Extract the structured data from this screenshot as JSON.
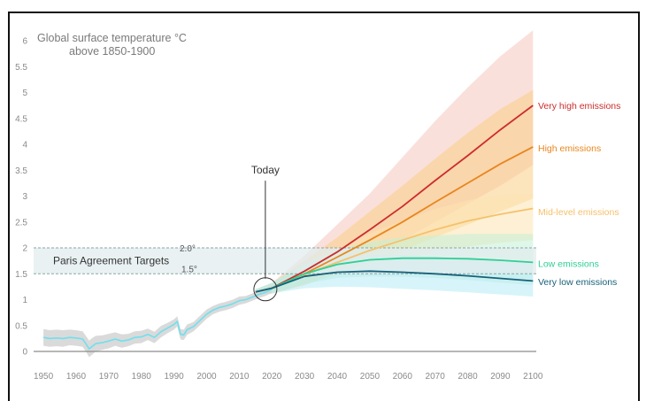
{
  "chart_data": {
    "type": "line",
    "title_line1": "Global surface temperature °C",
    "title_line2": "above 1850-1900",
    "xlim": [
      1947,
      2101
    ],
    "ylim": [
      0,
      6
    ],
    "x_ticks": [
      1950,
      1960,
      1970,
      1980,
      1990,
      2000,
      2010,
      2020,
      2030,
      2040,
      2050,
      2060,
      2070,
      2080,
      2090,
      2100
    ],
    "y_ticks": [
      {
        "value": 0,
        "label": "0"
      },
      {
        "value": 0.5,
        "label": "0.5"
      },
      {
        "value": 1,
        "label": "1"
      },
      {
        "value": 1.5,
        "label": "1.5"
      },
      {
        "value": 2,
        "label": "2"
      },
      {
        "value": 2.5,
        "label": "2.5"
      },
      {
        "value": 3,
        "label": "3"
      },
      {
        "value": 3.5,
        "label": "3.5"
      },
      {
        "value": 4,
        "label": "4"
      },
      {
        "value": 4.5,
        "label": "4.5"
      },
      {
        "value": 5,
        "label": "5"
      },
      {
        "value": 5.5,
        "label": "5.5"
      },
      {
        "value": 6,
        "label": "6"
      }
    ],
    "historical": {
      "color": "#6fe0ee",
      "band_color": "#d3d3d3",
      "x": [
        1950,
        1952,
        1954,
        1956,
        1958,
        1960,
        1962,
        1963,
        1964,
        1965,
        1966,
        1968,
        1970,
        1972,
        1974,
        1976,
        1978,
        1980,
        1982,
        1984,
        1986,
        1988,
        1990,
        1991,
        1992,
        1993,
        1994,
        1996,
        1998,
        2000,
        2002,
        2004,
        2006,
        2008,
        2010,
        2012,
        2014,
        2016,
        2018,
        2020
      ],
      "y": [
        0.27,
        0.25,
        0.26,
        0.25,
        0.27,
        0.26,
        0.24,
        0.15,
        0.05,
        0.1,
        0.15,
        0.17,
        0.2,
        0.24,
        0.2,
        0.22,
        0.27,
        0.28,
        0.33,
        0.27,
        0.38,
        0.45,
        0.52,
        0.58,
        0.33,
        0.32,
        0.42,
        0.48,
        0.6,
        0.72,
        0.8,
        0.85,
        0.88,
        0.92,
        0.98,
        1.0,
        1.05,
        1.1,
        1.14,
        1.2
      ],
      "band": [
        0.16,
        0.16,
        0.16,
        0.16,
        0.15,
        0.15,
        0.15,
        0.15,
        0.16,
        0.16,
        0.15,
        0.14,
        0.14,
        0.13,
        0.13,
        0.12,
        0.12,
        0.12,
        0.11,
        0.11,
        0.11,
        0.1,
        0.1,
        0.1,
        0.1,
        0.1,
        0.1,
        0.09,
        0.09,
        0.09,
        0.08,
        0.08,
        0.08,
        0.08,
        0.08,
        0.07,
        0.07,
        0.07,
        0.07,
        0.07
      ]
    },
    "series": [
      {
        "name": "Very high emissions",
        "color": "#cc2d2d",
        "x": [
          2015,
          2020,
          2030,
          2040,
          2050,
          2060,
          2070,
          2080,
          2090,
          2100
        ],
        "y": [
          1.15,
          1.22,
          1.55,
          1.92,
          2.35,
          2.8,
          3.3,
          3.78,
          4.28,
          4.75
        ],
        "band_low": [
          1.1,
          1.12,
          1.3,
          1.55,
          1.85,
          2.15,
          2.5,
          2.85,
          3.2,
          3.6
        ],
        "band_high": [
          1.2,
          1.32,
          1.85,
          2.45,
          3.05,
          3.75,
          4.45,
          5.1,
          5.7,
          6.2
        ],
        "band_color": "#f6c6be"
      },
      {
        "name": "High emissions",
        "color": "#e8861d",
        "x": [
          2015,
          2020,
          2030,
          2040,
          2050,
          2060,
          2070,
          2080,
          2090,
          2100
        ],
        "y": [
          1.15,
          1.22,
          1.5,
          1.82,
          2.15,
          2.5,
          2.88,
          3.25,
          3.62,
          3.95
        ],
        "band_low": [
          1.1,
          1.12,
          1.28,
          1.5,
          1.72,
          1.95,
          2.2,
          2.45,
          2.7,
          2.95
        ],
        "band_high": [
          1.2,
          1.32,
          1.75,
          2.2,
          2.7,
          3.2,
          3.72,
          4.22,
          4.68,
          5.05
        ],
        "band_color": "#f9cd86"
      },
      {
        "name": "Mid-level emissions",
        "color": "#f5c16c",
        "x": [
          2015,
          2020,
          2030,
          2040,
          2050,
          2060,
          2070,
          2080,
          2090,
          2100
        ],
        "y": [
          1.15,
          1.22,
          1.48,
          1.72,
          1.95,
          2.15,
          2.35,
          2.52,
          2.65,
          2.76
        ],
        "band_low": [
          1.1,
          1.12,
          1.3,
          1.48,
          1.65,
          1.8,
          1.92,
          2.02,
          2.1,
          2.15
        ],
        "band_high": [
          1.2,
          1.32,
          1.68,
          1.98,
          2.28,
          2.52,
          2.75,
          2.92,
          3.02,
          3.05
        ],
        "band_color": "#fbe3b0"
      },
      {
        "name": "Low emissions",
        "color": "#2fcf95",
        "x": [
          2015,
          2020,
          2030,
          2040,
          2050,
          2060,
          2070,
          2080,
          2090,
          2100
        ],
        "y": [
          1.15,
          1.22,
          1.5,
          1.68,
          1.77,
          1.8,
          1.8,
          1.79,
          1.76,
          1.72
        ],
        "band_low": [
          1.1,
          1.12,
          1.3,
          1.42,
          1.45,
          1.44,
          1.42,
          1.38,
          1.33,
          1.28
        ],
        "band_high": [
          1.2,
          1.32,
          1.72,
          1.97,
          2.12,
          2.2,
          2.24,
          2.27,
          2.27,
          2.27
        ],
        "band_color": "#c3f0d6"
      },
      {
        "name": "Very low emissions",
        "color": "#17607a",
        "x": [
          2015,
          2020,
          2030,
          2040,
          2050,
          2060,
          2070,
          2080,
          2090,
          2100
        ],
        "y": [
          1.15,
          1.22,
          1.45,
          1.53,
          1.55,
          1.53,
          1.5,
          1.46,
          1.41,
          1.36
        ],
        "band_low": [
          1.1,
          1.12,
          1.22,
          1.25,
          1.24,
          1.21,
          1.18,
          1.14,
          1.1,
          1.06
        ],
        "band_high": [
          1.2,
          1.32,
          1.68,
          1.82,
          1.86,
          1.86,
          1.84,
          1.8,
          1.76,
          1.72
        ],
        "band_color": "#b6ebf5"
      }
    ],
    "targets": {
      "label": "Paris Agreement Targets",
      "low": 1.5,
      "high": 2.0,
      "low_label": "1.5°",
      "high_label": "2.0°",
      "fill_color": "#e1ecee"
    },
    "today": {
      "label": "Today",
      "x": 2018,
      "y": 1.2,
      "label_y": 3.4
    },
    "grid": false
  }
}
